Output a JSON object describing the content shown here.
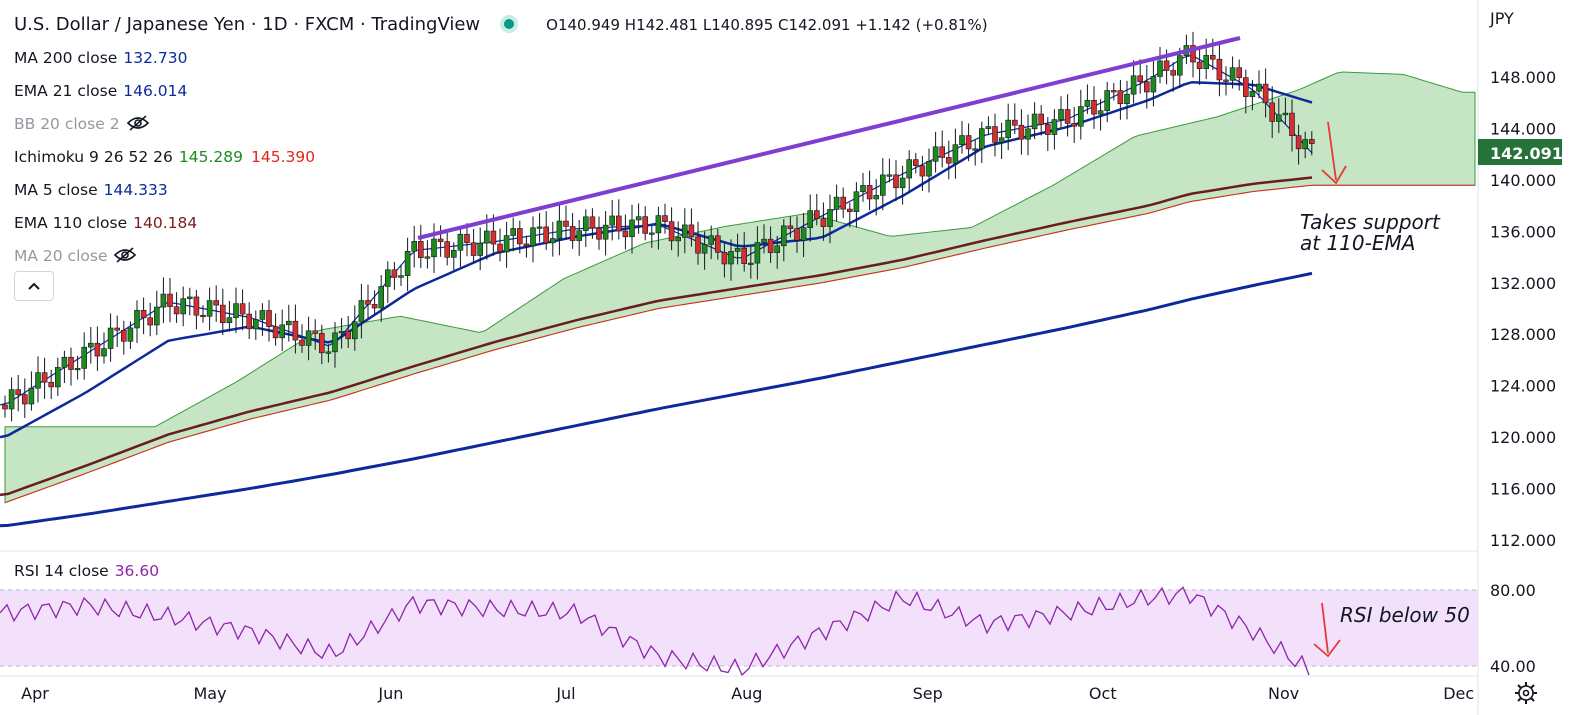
{
  "header": {
    "title": "U.S. Dollar / Japanese Yen · 1D · FXCM · TradingView",
    "ohlc": {
      "o_label": "O",
      "o": "140.949",
      "h_label": "H",
      "h": "142.481",
      "l_label": "L",
      "l": "140.895",
      "c_label": "C",
      "c": "142.091",
      "change": "+1.142 (+0.81%)"
    },
    "currency": "JPY"
  },
  "legend": {
    "ma200": {
      "label": "MA 200 close",
      "value": "132.730",
      "color": "#0d2a9c"
    },
    "ema21": {
      "label": "EMA 21 close",
      "value": "146.014",
      "color": "#0d2a9c"
    },
    "bb20": {
      "label": "BB 20 close 2"
    },
    "ichimoku": {
      "label": "Ichimoku 9 26 52 26",
      "value1": "145.289",
      "value2": "145.390",
      "color1": "#1e8a1e",
      "color2": "#e3261b"
    },
    "ma5": {
      "label": "MA 5 close",
      "value": "144.333",
      "color": "#0d2a9c"
    },
    "ema110": {
      "label": "EMA 110 close",
      "value": "140.184",
      "color": "#7b1d1d"
    },
    "ma20": {
      "label": "MA 20 close"
    }
  },
  "rsi_legend": {
    "label": "RSI 14 close",
    "value": "36.60",
    "color": "#8e24aa"
  },
  "price_axis": {
    "ticks": [
      "148.000",
      "144.000",
      "140.000",
      "136.000",
      "132.000",
      "128.000",
      "124.000",
      "120.000",
      "116.000",
      "112.000"
    ],
    "last_price": "142.091",
    "last_color": "#26733a"
  },
  "rsi_axis": {
    "ticks": [
      "80.00",
      "40.00"
    ]
  },
  "time_axis": {
    "labels": [
      "Apr",
      "May",
      "Jun",
      "Jul",
      "Aug",
      "Sep",
      "Oct",
      "Nov",
      "Dec"
    ]
  },
  "annotations": {
    "support_line1": "Takes support",
    "support_line2": "at 110-EMA",
    "rsi_note": "RSI below 50"
  },
  "colors": {
    "up": "#1e8a1e",
    "down": "#d32f2f",
    "cloud": "#b7dfb7",
    "cloud_bear": "#f7a8a4",
    "rsi_band": "#f3e1fb",
    "trend": "#7e3fd0",
    "arrow": "#e53935"
  },
  "chart_data": {
    "type": "candlestick",
    "symbol": "USDJPY",
    "interval": "1D",
    "ylim": [
      112,
      150
    ],
    "rsi_ylim": [
      25,
      90
    ],
    "x": [
      "2022-04-01",
      "2022-04-15",
      "2022-04-29",
      "2022-05-13",
      "2022-05-27",
      "2022-06-10",
      "2022-06-24",
      "2022-07-08",
      "2022-07-22",
      "2022-08-05",
      "2022-08-19",
      "2022-09-02",
      "2022-09-16",
      "2022-09-30",
      "2022-10-14",
      "2022-10-21",
      "2022-11-01",
      "2022-11-11"
    ],
    "series": [
      {
        "name": "Close",
        "values": [
          122.5,
          126.5,
          130.5,
          129.3,
          127.0,
          134.5,
          135.2,
          136.2,
          136.5,
          133.8,
          137.2,
          140.5,
          143.5,
          144.7,
          147.8,
          149.8,
          147.0,
          142.091
        ]
      },
      {
        "name": "EMA 21 close",
        "values": [
          120.0,
          123.5,
          127.5,
          128.6,
          127.3,
          131.5,
          134.3,
          135.6,
          136.6,
          134.8,
          135.5,
          138.8,
          142.6,
          144.1,
          146.2,
          147.6,
          147.4,
          146.014
        ]
      },
      {
        "name": "EMA 110 close",
        "values": [
          115.5,
          117.8,
          120.2,
          122.0,
          123.5,
          125.5,
          127.4,
          129.1,
          130.6,
          131.6,
          132.6,
          133.8,
          135.3,
          136.7,
          138.0,
          138.9,
          139.7,
          140.184
        ]
      },
      {
        "name": "MA 200 close",
        "values": [
          113.1,
          114.0,
          115.0,
          116.0,
          117.1,
          118.3,
          119.6,
          120.9,
          122.2,
          123.4,
          124.6,
          125.9,
          127.2,
          128.5,
          129.9,
          130.7,
          131.8,
          132.73
        ]
      },
      {
        "name": "RSI 14 close",
        "values": [
          68,
          72,
          66,
          58,
          46,
          73,
          70,
          68,
          45,
          38,
          58,
          76,
          62,
          68,
          76,
          78,
          58,
          36.6
        ]
      }
    ]
  }
}
